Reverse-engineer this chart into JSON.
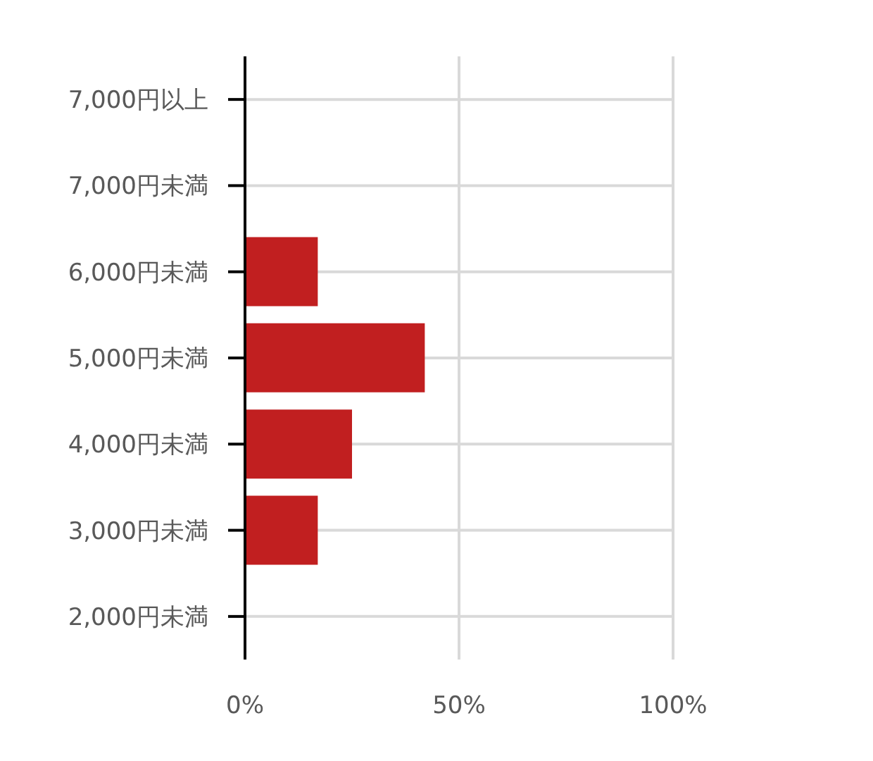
{
  "chart_data": {
    "type": "bar",
    "orientation": "horizontal",
    "categories": [
      "7,000円以上",
      "7,000円未満",
      "6,000円未満",
      "5,000円未満",
      "4,000円未満",
      "3,000円未満",
      "2,000円未満"
    ],
    "values": [
      0,
      0,
      17,
      42,
      25,
      17,
      0
    ],
    "color": "#c11f20",
    "xlim": [
      0,
      100
    ],
    "xticks": [
      {
        "value": 0,
        "label": "0%"
      },
      {
        "value": 50,
        "label": "50%"
      },
      {
        "value": 100,
        "label": "100%"
      }
    ],
    "grid": true
  }
}
